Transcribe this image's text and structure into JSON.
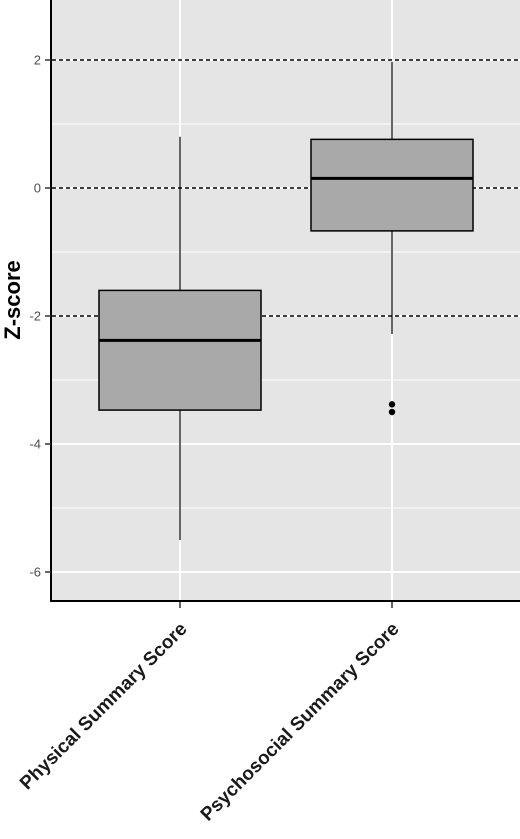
{
  "chart_data": {
    "type": "boxplot",
    "ylabel": "Z-score",
    "ylim": [
      -6.5,
      2.9
    ],
    "y_ticks": [
      -6,
      -4,
      -2,
      0,
      2
    ],
    "y_tick_labels": [
      "-6",
      "-4",
      "-2",
      "0",
      "2"
    ],
    "y_minor_ticks": [
      -5,
      -3,
      -1,
      1
    ],
    "reference_lines": [
      -2,
      0,
      2
    ],
    "categories": [
      "Physical Summary Score",
      "Psychosocial Summary Score"
    ],
    "boxes": [
      {
        "category": "Physical Summary Score",
        "whisker_low": -5.5,
        "q1": -3.47,
        "median": -2.38,
        "q3": -1.6,
        "whisker_high": 0.8,
        "outliers": []
      },
      {
        "category": "Psychosocial Summary Score",
        "whisker_low": -2.28,
        "q1": -0.67,
        "median": 0.15,
        "q3": 0.76,
        "whisker_high": 1.97,
        "outliers": [
          -3.38,
          -3.5
        ]
      }
    ],
    "colors": {
      "panel": "#e5e5e5",
      "grid": "#ffffff",
      "box_fill": "#a9a9a9",
      "line": "#000000"
    },
    "grid": true
  }
}
